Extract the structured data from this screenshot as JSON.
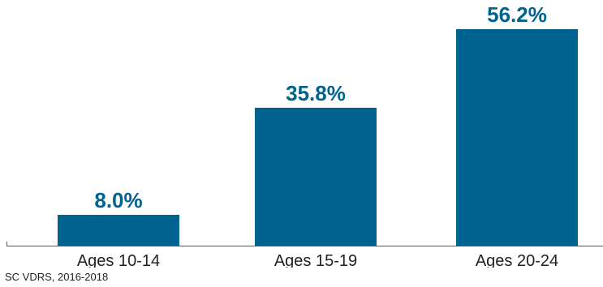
{
  "chart_data": {
    "type": "bar",
    "categories": [
      "Ages 10-14",
      "Ages 15-19",
      "Ages 20-24"
    ],
    "values": [
      8.0,
      35.8,
      56.2
    ],
    "value_labels": [
      "8.0%",
      "35.8%",
      "56.2%"
    ],
    "title": "",
    "xlabel": "",
    "ylabel": "",
    "ylim": [
      0,
      56.2
    ],
    "grid": false,
    "legend": "none",
    "colors": {
      "bar": "#00628F",
      "value_label": "#00628F",
      "axis": "#555555",
      "tick_label": "#222222"
    }
  },
  "source": "SC VDRS, 2016-2018"
}
